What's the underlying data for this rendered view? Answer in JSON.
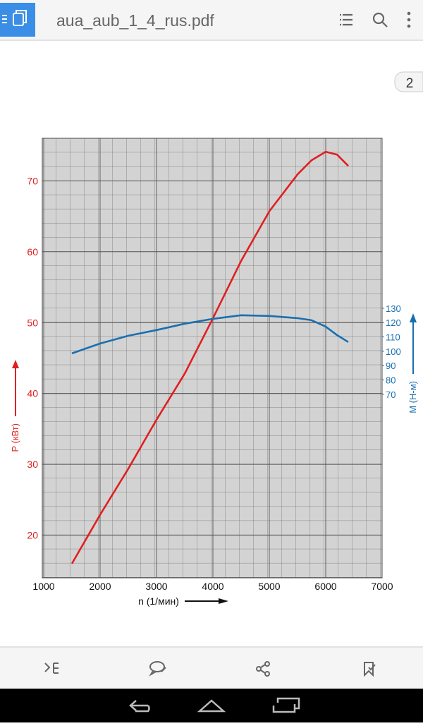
{
  "toolbar": {
    "title": "aua_aub_1_4_rus.pdf"
  },
  "page_indicator": 2,
  "chart_data": {
    "type": "line",
    "x_label": "n (1/мин)",
    "y_label": "P (кВт)",
    "y2_label": "M (Н-м)",
    "x": [
      1500,
      2000,
      2500,
      3000,
      3500,
      4000,
      4500,
      5000,
      5500,
      5750,
      6000,
      6200,
      6400
    ],
    "series": [
      {
        "name": "P (кВт)",
        "color": "#e02020",
        "values": [
          16.0,
          22.9,
          29.4,
          36.3,
          42.8,
          50.6,
          58.7,
          65.7,
          70.9,
          72.9,
          74.1,
          73.7,
          72.1
        ]
      },
      {
        "name": "M (Н-м)",
        "color": "#1a6fb0",
        "axis": "y2",
        "values": [
          98.5,
          105.4,
          110.8,
          114.8,
          119.2,
          122.6,
          125.1,
          124.6,
          123.1,
          121.6,
          117.2,
          111.3,
          106.4
        ]
      }
    ],
    "xlim": [
      975,
      7000
    ],
    "xticks": [
      1000,
      2000,
      3000,
      4000,
      5000,
      6000,
      7000
    ],
    "ylim": [
      14,
      76
    ],
    "yticks": [
      20,
      30,
      40,
      50,
      60,
      70
    ],
    "y2lim": [
      -58,
      248.5
    ],
    "y2ticks": [
      70,
      80,
      90,
      100,
      110,
      120,
      130
    ],
    "grid": true
  }
}
